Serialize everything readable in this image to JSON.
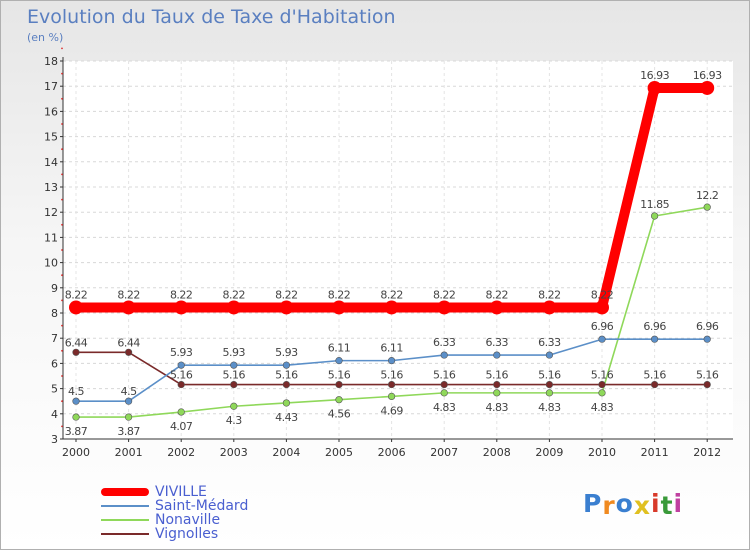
{
  "chart_data": {
    "type": "line",
    "title": "Evolution du Taux de Taxe d'Habitation",
    "subtitle": "(en %)",
    "x": [
      "2000",
      "2001",
      "2002",
      "2003",
      "2004",
      "2005",
      "2006",
      "2007",
      "2008",
      "2009",
      "2010",
      "2011",
      "2012"
    ],
    "ylim": [
      3,
      18
    ],
    "yticks": [
      "3",
      "4",
      "5",
      "6",
      "7",
      "8",
      "9",
      "10",
      "11",
      "12",
      "13",
      "14",
      "15",
      "16",
      "17",
      "18"
    ],
    "series": [
      {
        "name": "VIVILLE",
        "color": "#ff0000",
        "values": [
          8.22,
          8.22,
          8.22,
          8.22,
          8.22,
          8.22,
          8.22,
          8.22,
          8.22,
          8.22,
          8.22,
          16.93,
          16.93
        ],
        "labels": [
          "8.22",
          "8.22",
          "8.22",
          "8.22",
          "8.22",
          "8.22",
          "8.22",
          "8.22",
          "8.22",
          "8.22",
          "8.22",
          "16.93",
          "16.93"
        ]
      },
      {
        "name": "Saint-Médard",
        "color": "#5b8fc8",
        "values": [
          4.5,
          4.5,
          5.93,
          5.93,
          5.93,
          6.11,
          6.11,
          6.33,
          6.33,
          6.33,
          6.96,
          6.96,
          6.96
        ],
        "labels": [
          "4.5",
          "4.5",
          "5.93",
          "5.93",
          "5.93",
          "6.11",
          "6.11",
          "6.33",
          "6.33",
          "6.33",
          "6.96",
          "6.96",
          "6.96"
        ]
      },
      {
        "name": "Nonaville",
        "color": "#8fd85a",
        "values": [
          3.87,
          3.87,
          4.07,
          4.3,
          4.43,
          4.56,
          4.69,
          4.83,
          4.83,
          4.83,
          4.83,
          11.85,
          12.2
        ],
        "labels": [
          "3.87",
          "3.87",
          "4.07",
          "4.3",
          "4.43",
          "4.56",
          "4.69",
          "4.83",
          "4.83",
          "4.83",
          "4.83",
          "11.85",
          "12.2"
        ]
      },
      {
        "name": "Vignolles",
        "color": "#7a2a2a",
        "values": [
          6.44,
          6.44,
          5.16,
          5.16,
          5.16,
          5.16,
          5.16,
          5.16,
          5.16,
          5.16,
          5.16,
          5.16,
          5.16
        ],
        "labels": [
          "6.44",
          "6.44",
          "5.16",
          "5.16",
          "5.16",
          "5.16",
          "5.16",
          "5.16",
          "5.16",
          "5.16",
          "5.16",
          "5.16",
          "5.16"
        ]
      }
    ],
    "legend": [
      "VIVILLE",
      "Saint-Médard",
      "Nonaville",
      "Vignolles"
    ]
  },
  "logo": {
    "letters": [
      "P",
      "r",
      "o",
      "x",
      "i",
      "t",
      "i"
    ],
    "colors": [
      "#3a7fd0",
      "#f08a20",
      "#3a7fd0",
      "#e0c020",
      "#d83a2a",
      "#3a9a3a",
      "#c040a0"
    ]
  }
}
